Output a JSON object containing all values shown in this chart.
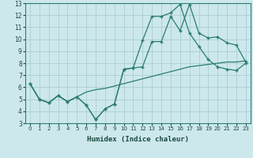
{
  "xlabel": "Humidex (Indice chaleur)",
  "xlim": [
    -0.5,
    23.5
  ],
  "ylim": [
    3,
    13
  ],
  "yticks": [
    3,
    4,
    5,
    6,
    7,
    8,
    9,
    10,
    11,
    12,
    13
  ],
  "xticks": [
    0,
    1,
    2,
    3,
    4,
    5,
    6,
    7,
    8,
    9,
    10,
    11,
    12,
    13,
    14,
    15,
    16,
    17,
    18,
    19,
    20,
    21,
    22,
    23
  ],
  "bg_color": "#cde8ec",
  "line_color": "#2a7d6e",
  "grid_color": "#aacdd4",
  "line1_x": [
    0,
    1,
    2,
    3,
    4,
    5,
    6,
    7,
    8,
    9,
    10,
    11,
    12,
    13,
    14,
    15,
    16,
    17,
    18,
    19,
    20,
    21,
    22,
    23
  ],
  "line1_y": [
    6.3,
    5.0,
    4.7,
    5.3,
    4.8,
    5.2,
    4.5,
    3.3,
    4.2,
    4.6,
    7.5,
    7.6,
    7.7,
    9.8,
    9.8,
    11.9,
    10.7,
    12.9,
    10.5,
    10.1,
    10.2,
    9.7,
    9.5,
    8.1
  ],
  "line2_x": [
    0,
    1,
    2,
    3,
    4,
    5,
    6,
    7,
    8,
    9,
    10,
    11,
    12,
    13,
    14,
    15,
    16,
    17,
    18,
    19,
    20,
    21,
    22,
    23
  ],
  "line2_y": [
    6.3,
    5.0,
    4.7,
    5.3,
    4.8,
    5.2,
    4.5,
    3.3,
    4.2,
    4.6,
    7.5,
    7.6,
    9.9,
    11.9,
    11.9,
    12.2,
    12.9,
    10.5,
    9.4,
    8.3,
    7.7,
    7.5,
    7.4,
    8.0
  ],
  "line3_x": [
    0,
    1,
    2,
    3,
    4,
    5,
    6,
    7,
    8,
    9,
    10,
    11,
    12,
    13,
    14,
    15,
    16,
    17,
    18,
    19,
    20,
    21,
    22,
    23
  ],
  "line3_y": [
    6.3,
    5.0,
    4.7,
    5.3,
    4.8,
    5.2,
    5.6,
    5.8,
    5.9,
    6.1,
    6.3,
    6.5,
    6.7,
    6.9,
    7.1,
    7.3,
    7.5,
    7.7,
    7.8,
    7.9,
    8.0,
    8.1,
    8.1,
    8.2
  ],
  "marker_size": 3.5
}
